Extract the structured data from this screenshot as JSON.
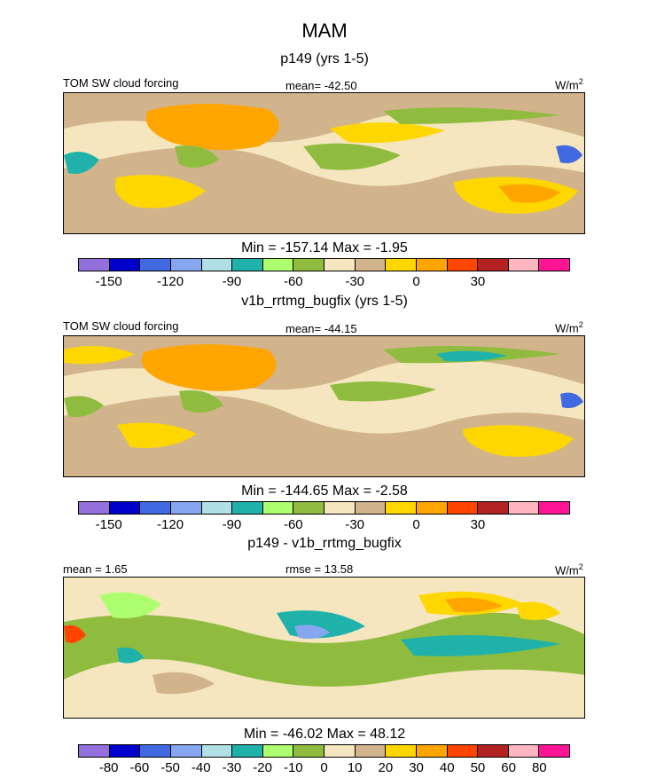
{
  "figure": {
    "title": "MAM"
  },
  "chart_data": [
    {
      "type": "heatmap",
      "title": "p149 (yrs 1-5)",
      "left_label": "TOM SW cloud forcing",
      "center_label": "mean= -42.50",
      "units": "W/m",
      "units_sup": "2",
      "minmax": "Min = -157.14 Max =  -1.95",
      "colorbar": {
        "colors": [
          "#9370db",
          "#0000cd",
          "#4169e1",
          "#87a6f0",
          "#b0e0e6",
          "#20b2aa",
          "#adff6f",
          "#8fbc3f",
          "#f5e6bf",
          "#d2b48c",
          "#ffd700",
          "#ffa500",
          "#ff4500",
          "#b22222",
          "#ffb6c1",
          "#ff1493"
        ],
        "tick_labels": [
          "-150",
          "-120",
          "-90",
          "-60",
          "-30",
          "0",
          "30"
        ]
      }
    },
    {
      "type": "heatmap",
      "title": "v1b_rrtmg_bugfix (yrs 1-5)",
      "left_label": "TOM SW cloud forcing",
      "center_label": "mean= -44.15",
      "units": "W/m",
      "units_sup": "2",
      "minmax": "Min = -144.65 Max =  -2.58",
      "colorbar": {
        "colors": [
          "#9370db",
          "#0000cd",
          "#4169e1",
          "#87a6f0",
          "#b0e0e6",
          "#20b2aa",
          "#adff6f",
          "#8fbc3f",
          "#f5e6bf",
          "#d2b48c",
          "#ffd700",
          "#ffa500",
          "#ff4500",
          "#b22222",
          "#ffb6c1",
          "#ff1493"
        ],
        "tick_labels": [
          "-150",
          "-120",
          "-90",
          "-60",
          "-30",
          "0",
          "30"
        ]
      }
    },
    {
      "type": "heatmap",
      "title": "p149 - v1b_rrtmg_bugfix",
      "left_label": "mean =   1.65",
      "center_label": "rmse =  13.58",
      "units": "W/m",
      "units_sup": "2",
      "minmax": "Min = -46.02 Max =  48.12",
      "colorbar": {
        "colors": [
          "#9370db",
          "#0000cd",
          "#4169e1",
          "#87a6f0",
          "#b0e0e6",
          "#20b2aa",
          "#adff6f",
          "#8fbc3f",
          "#f5e6bf",
          "#d2b48c",
          "#ffd700",
          "#ffa500",
          "#ff4500",
          "#b22222",
          "#ffb6c1",
          "#ff1493"
        ],
        "tick_labels": [
          "-80",
          "-60",
          "-50",
          "-40",
          "-30",
          "-20",
          "-10",
          "0",
          "10",
          "20",
          "30",
          "40",
          "50",
          "60",
          "80"
        ]
      }
    }
  ]
}
